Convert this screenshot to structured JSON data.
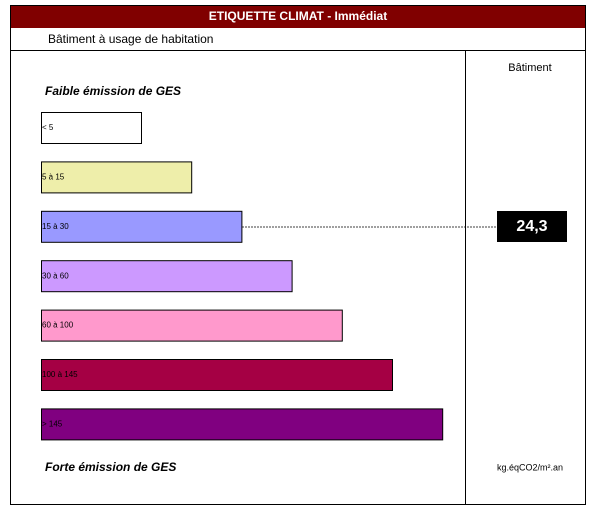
{
  "header": {
    "title": "ETIQUETTE CLIMAT - Immédiat",
    "subtitle": "Bâtiment à usage de habitation"
  },
  "column_header": "Bâtiment",
  "top_label": "Faible émission de GES",
  "bottom_label": "Forte émission de GES",
  "unit": "kg.éqCO2/m².an",
  "classes": [
    {
      "label": "< 5",
      "color": "#ffffff"
    },
    {
      "label": "5 à 15",
      "color": "#eeeeaa"
    },
    {
      "label": "15 à 30",
      "color": "#9999ff"
    },
    {
      "label": "30 à 60",
      "color": "#cc99ff"
    },
    {
      "label": "60 à 100",
      "color": "#ff99cc"
    },
    {
      "label": "100 à 145",
      "color": "#a50044"
    },
    {
      "label": "> 145",
      "color": "#800080"
    }
  ],
  "indicator": "24,3"
}
